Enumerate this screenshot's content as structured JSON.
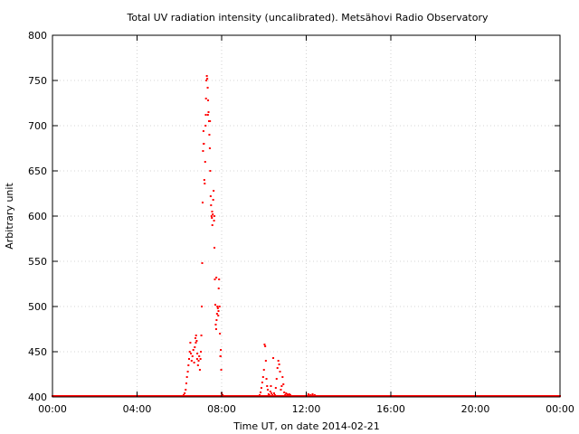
{
  "chart_data": {
    "type": "scatter",
    "title": "Total UV radiation intensity (uncalibrated). Metsähovi Radio Observatory",
    "xlabel": "Time UT, on date 2014-02-21",
    "ylabel": "Arbitrary unit",
    "xlim": [
      0,
      24
    ],
    "ylim": [
      400,
      800
    ],
    "x_ticks": [
      {
        "value": 0,
        "label": "00:00"
      },
      {
        "value": 4,
        "label": "04:00"
      },
      {
        "value": 8,
        "label": "08:00"
      },
      {
        "value": 12,
        "label": "12:00"
      },
      {
        "value": 16,
        "label": "16:00"
      },
      {
        "value": 20,
        "label": "20:00"
      },
      {
        "value": 24,
        "label": "00:00"
      }
    ],
    "y_ticks": [
      400,
      450,
      500,
      550,
      600,
      650,
      700,
      750,
      800
    ],
    "grid": true,
    "point_color": "#ff0000",
    "baseline": {
      "value": 401,
      "x_start": 0,
      "x_end": 24
    },
    "points": [
      [
        6.2,
        402
      ],
      [
        6.25,
        404
      ],
      [
        6.3,
        408
      ],
      [
        6.33,
        415
      ],
      [
        6.36,
        422
      ],
      [
        6.4,
        428
      ],
      [
        6.43,
        435
      ],
      [
        6.46,
        442
      ],
      [
        6.49,
        450
      ],
      [
        6.52,
        460
      ],
      [
        6.55,
        448
      ],
      [
        6.58,
        440
      ],
      [
        6.62,
        445
      ],
      [
        6.66,
        452
      ],
      [
        6.7,
        438
      ],
      [
        6.73,
        455
      ],
      [
        6.76,
        465
      ],
      [
        6.79,
        468
      ],
      [
        6.82,
        462
      ],
      [
        6.85,
        448
      ],
      [
        6.88,
        435
      ],
      [
        6.91,
        440
      ],
      [
        6.94,
        445
      ],
      [
        6.97,
        430
      ],
      [
        7.0,
        442
      ],
      [
        7.02,
        450
      ],
      [
        7.04,
        468
      ],
      [
        7.06,
        500
      ],
      [
        7.08,
        548
      ],
      [
        7.1,
        615
      ],
      [
        7.12,
        672
      ],
      [
        7.14,
        694
      ],
      [
        7.16,
        680
      ],
      [
        7.18,
        640
      ],
      [
        7.2,
        636
      ],
      [
        7.22,
        660
      ],
      [
        7.24,
        700
      ],
      [
        7.26,
        730
      ],
      [
        7.28,
        750
      ],
      [
        7.3,
        755
      ],
      [
        7.32,
        752
      ],
      [
        7.34,
        742
      ],
      [
        7.36,
        728
      ],
      [
        7.38,
        715
      ],
      [
        7.4,
        705
      ],
      [
        7.42,
        690
      ],
      [
        7.44,
        675
      ],
      [
        7.46,
        650
      ],
      [
        7.48,
        622
      ],
      [
        7.5,
        612
      ],
      [
        7.52,
        600
      ],
      [
        7.54,
        598
      ],
      [
        7.56,
        590
      ],
      [
        7.58,
        602
      ],
      [
        7.6,
        618
      ],
      [
        7.62,
        628
      ],
      [
        7.64,
        595
      ],
      [
        7.66,
        565
      ],
      [
        7.68,
        530
      ],
      [
        7.7,
        502
      ],
      [
        7.72,
        480
      ],
      [
        7.74,
        475
      ],
      [
        7.76,
        485
      ],
      [
        7.78,
        492
      ],
      [
        7.8,
        500
      ],
      [
        7.82,
        498
      ],
      [
        7.84,
        490
      ],
      [
        7.86,
        520
      ],
      [
        7.88,
        530
      ],
      [
        7.9,
        500
      ],
      [
        7.92,
        470
      ],
      [
        7.94,
        445
      ],
      [
        7.96,
        452
      ],
      [
        7.98,
        430
      ],
      [
        8.0,
        404
      ],
      [
        8.05,
        402
      ],
      [
        6.78,
        460
      ],
      [
        6.84,
        442
      ],
      [
        7.15,
        680
      ],
      [
        7.25,
        712
      ],
      [
        7.35,
        712
      ],
      [
        7.45,
        705
      ],
      [
        7.55,
        605
      ],
      [
        7.65,
        600
      ],
      [
        7.75,
        532
      ],
      [
        7.85,
        495
      ],
      [
        7.95,
        445
      ],
      [
        9.8,
        402
      ],
      [
        9.84,
        405
      ],
      [
        9.88,
        410
      ],
      [
        9.92,
        416
      ],
      [
        9.96,
        422
      ],
      [
        10.0,
        430
      ],
      [
        10.03,
        458
      ],
      [
        10.06,
        456
      ],
      [
        10.09,
        440
      ],
      [
        10.12,
        420
      ],
      [
        10.15,
        412
      ],
      [
        10.18,
        408
      ],
      [
        10.22,
        403
      ],
      [
        10.26,
        402
      ],
      [
        10.3,
        406
      ],
      [
        10.33,
        412
      ],
      [
        10.36,
        404
      ],
      [
        10.4,
        402
      ],
      [
        10.44,
        443
      ],
      [
        10.48,
        404
      ],
      [
        10.52,
        402
      ],
      [
        10.56,
        410
      ],
      [
        10.6,
        420
      ],
      [
        10.64,
        432
      ],
      [
        10.68,
        440
      ],
      [
        10.72,
        436
      ],
      [
        10.76,
        428
      ],
      [
        10.8,
        408
      ],
      [
        10.84,
        412
      ],
      [
        10.88,
        422
      ],
      [
        10.92,
        414
      ],
      [
        10.96,
        405
      ],
      [
        11.0,
        402
      ],
      [
        11.05,
        404
      ],
      [
        11.1,
        403
      ],
      [
        11.15,
        402
      ],
      [
        11.2,
        403
      ],
      [
        11.25,
        402
      ],
      [
        12.1,
        403
      ],
      [
        12.2,
        402
      ],
      [
        12.3,
        403
      ],
      [
        12.4,
        402
      ]
    ]
  }
}
